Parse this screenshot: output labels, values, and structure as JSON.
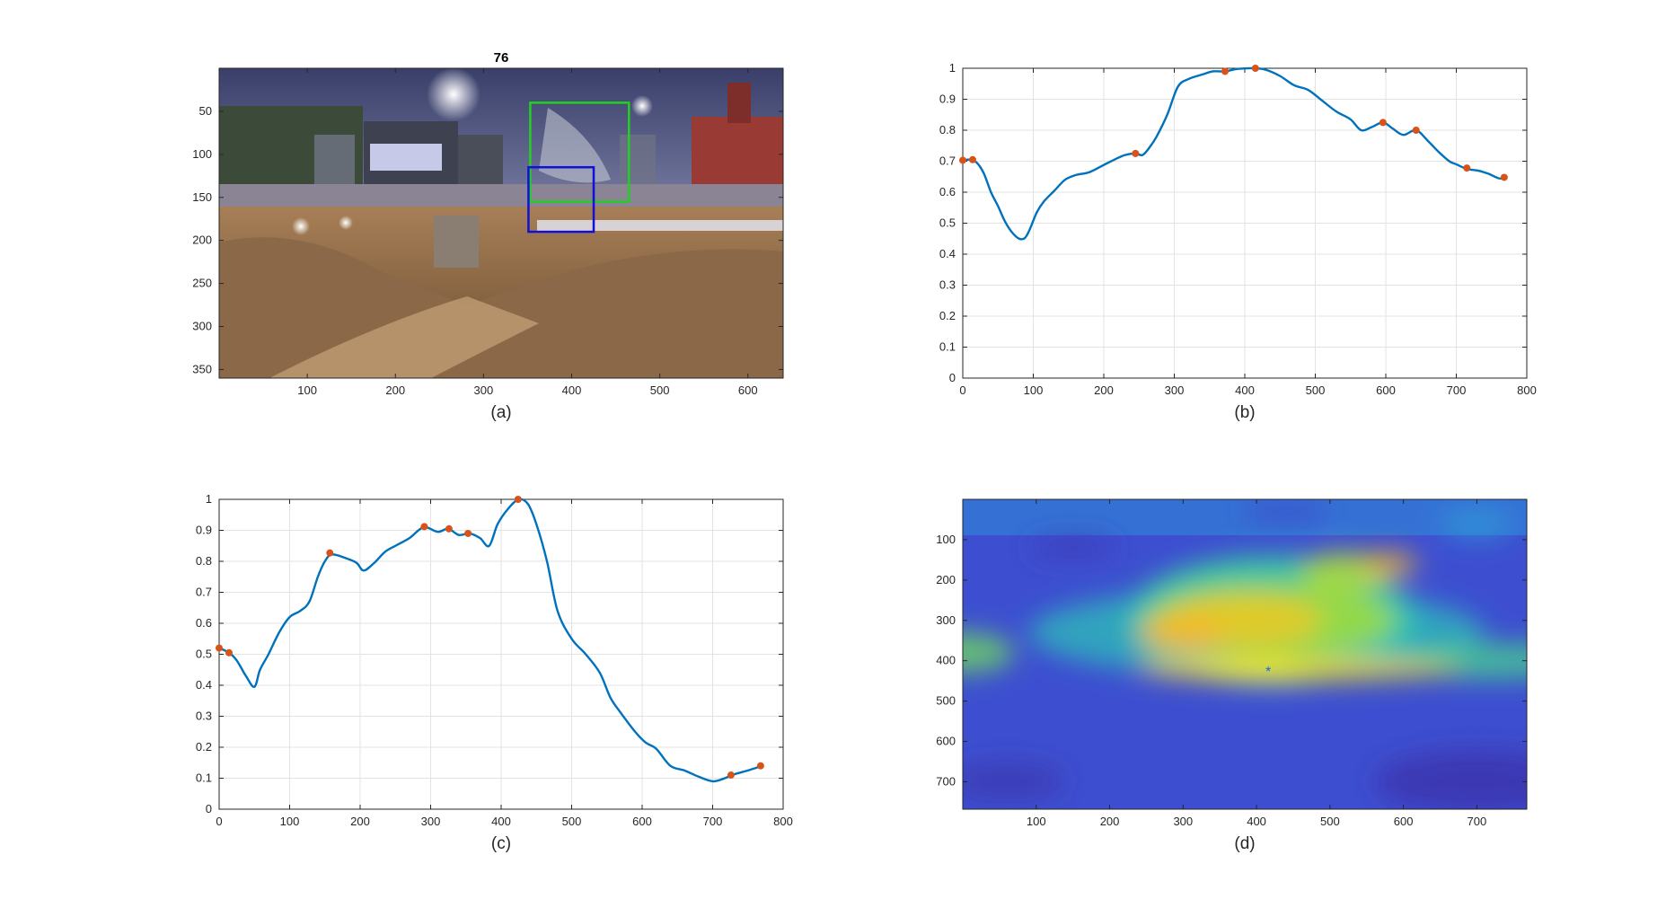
{
  "colors": {
    "line": "#0072bd",
    "peak_marker": "#d95319",
    "green_box": "#22d022",
    "blue_box": "#1010d8",
    "star_marker": "#1b6bd6",
    "grid": "#e3e3e3",
    "axis": "#262626"
  },
  "chart_data": [
    {
      "id": "a",
      "type": "image",
      "caption": "(a)",
      "title": "76",
      "xlim": [
        0,
        640
      ],
      "ylim": [
        0,
        360
      ],
      "y_reversed": true,
      "xticks": [
        100,
        200,
        300,
        400,
        500,
        600
      ],
      "yticks": [
        50,
        100,
        150,
        200,
        250,
        300,
        350
      ],
      "boxes": [
        {
          "color": "green",
          "x": [
            353,
            465
          ],
          "y": [
            40,
            155
          ]
        },
        {
          "color": "blue",
          "x": [
            351,
            425
          ],
          "y": [
            115,
            190
          ]
        }
      ]
    },
    {
      "id": "b",
      "type": "line",
      "caption": "(b)",
      "xlim": [
        0,
        800
      ],
      "ylim": [
        0,
        1
      ],
      "xticks": [
        0,
        100,
        200,
        300,
        400,
        500,
        600,
        700,
        800
      ],
      "yticks": [
        0,
        0.1,
        0.2,
        0.3,
        0.4,
        0.5,
        0.6,
        0.7,
        0.8,
        0.9,
        1
      ],
      "grid": true,
      "series": [
        {
          "x": [
            0,
            10,
            20,
            30,
            40,
            50,
            60,
            70,
            80,
            88,
            95,
            105,
            115,
            130,
            145,
            160,
            180,
            200,
            215,
            230,
            245,
            255,
            265,
            275,
            290,
            305,
            320,
            340,
            355,
            372,
            390,
            415,
            430,
            450,
            470,
            490,
            510,
            530,
            550,
            565,
            580,
            596,
            610,
            625,
            643,
            660,
            675,
            690,
            700,
            715,
            730,
            745,
            760,
            768
          ],
          "y": [
            0.703,
            0.705,
            0.695,
            0.66,
            0.6,
            0.555,
            0.505,
            0.47,
            0.45,
            0.452,
            0.48,
            0.535,
            0.57,
            0.605,
            0.64,
            0.655,
            0.665,
            0.688,
            0.705,
            0.72,
            0.725,
            0.72,
            0.745,
            0.78,
            0.85,
            0.94,
            0.965,
            0.98,
            0.99,
            0.99,
            0.998,
            1.0,
            0.995,
            0.975,
            0.945,
            0.93,
            0.895,
            0.86,
            0.835,
            0.8,
            0.81,
            0.825,
            0.805,
            0.785,
            0.8,
            0.765,
            0.73,
            0.7,
            0.69,
            0.675,
            0.67,
            0.66,
            0.645,
            0.645
          ]
        }
      ],
      "peaks": [
        {
          "x": 0,
          "y": 0.703
        },
        {
          "x": 14,
          "y": 0.705
        },
        {
          "x": 245,
          "y": 0.725
        },
        {
          "x": 372,
          "y": 0.99
        },
        {
          "x": 415,
          "y": 1.0
        },
        {
          "x": 596,
          "y": 0.825
        },
        {
          "x": 643,
          "y": 0.8
        },
        {
          "x": 715,
          "y": 0.678
        },
        {
          "x": 768,
          "y": 0.648
        }
      ]
    },
    {
      "id": "c",
      "type": "line",
      "caption": "(c)",
      "xlim": [
        0,
        800
      ],
      "ylim": [
        0,
        1
      ],
      "xticks": [
        0,
        100,
        200,
        300,
        400,
        500,
        600,
        700,
        800
      ],
      "yticks": [
        0,
        0.1,
        0.2,
        0.3,
        0.4,
        0.5,
        0.6,
        0.7,
        0.8,
        0.9,
        1
      ],
      "grid": true,
      "series": [
        {
          "x": [
            0,
            14,
            25,
            38,
            50,
            58,
            70,
            85,
            100,
            115,
            128,
            140,
            150,
            160,
            180,
            195,
            205,
            220,
            235,
            250,
            270,
            290,
            310,
            325,
            340,
            355,
            370,
            383,
            395,
            410,
            425,
            438,
            450,
            465,
            480,
            500,
            520,
            540,
            555,
            570,
            590,
            605,
            620,
            640,
            660,
            680,
            700,
            715,
            730,
            750,
            768
          ],
          "y": [
            0.52,
            0.505,
            0.48,
            0.43,
            0.395,
            0.45,
            0.5,
            0.57,
            0.62,
            0.64,
            0.67,
            0.75,
            0.8,
            0.822,
            0.81,
            0.795,
            0.77,
            0.795,
            0.83,
            0.85,
            0.875,
            0.91,
            0.895,
            0.905,
            0.885,
            0.89,
            0.875,
            0.85,
            0.92,
            0.97,
            1.0,
            0.985,
            0.92,
            0.8,
            0.64,
            0.55,
            0.5,
            0.44,
            0.36,
            0.31,
            0.25,
            0.215,
            0.195,
            0.14,
            0.125,
            0.105,
            0.09,
            0.098,
            0.112,
            0.125,
            0.138
          ]
        }
      ],
      "peaks": [
        {
          "x": 0,
          "y": 0.52
        },
        {
          "x": 14,
          "y": 0.505
        },
        {
          "x": 157,
          "y": 0.827
        },
        {
          "x": 291,
          "y": 0.912
        },
        {
          "x": 326,
          "y": 0.905
        },
        {
          "x": 353,
          "y": 0.89
        },
        {
          "x": 424,
          "y": 1.0
        },
        {
          "x": 726,
          "y": 0.11
        },
        {
          "x": 768,
          "y": 0.14
        }
      ]
    },
    {
      "id": "d",
      "type": "heatmap",
      "caption": "(d)",
      "xlim": [
        0,
        768
      ],
      "ylim": [
        0,
        768
      ],
      "y_reversed": true,
      "xticks": [
        100,
        200,
        300,
        400,
        500,
        600,
        700
      ],
      "yticks": [
        100,
        200,
        300,
        400,
        500,
        600,
        700
      ],
      "blobs": [
        {
          "x": 420,
          "y": 300,
          "rx": 200,
          "ry": 160,
          "color": "#3ad1a0",
          "opacity": 0.9
        },
        {
          "x": 400,
          "y": 330,
          "rx": 310,
          "ry": 110,
          "color": "#2bbfb8",
          "opacity": 0.75
        },
        {
          "x": 0,
          "y": 380,
          "rx": 70,
          "ry": 50,
          "color": "#6fd85e",
          "opacity": 0.8
        },
        {
          "x": 720,
          "y": 400,
          "rx": 120,
          "ry": 45,
          "color": "#48cf90",
          "opacity": 0.8
        },
        {
          "x": 420,
          "y": 300,
          "rx": 170,
          "ry": 90,
          "color": "#9edb3e",
          "opacity": 0.9
        },
        {
          "x": 520,
          "y": 180,
          "rx": 60,
          "ry": 50,
          "color": "#b9dc34",
          "opacity": 0.8
        },
        {
          "x": 380,
          "y": 300,
          "rx": 110,
          "ry": 65,
          "color": "#e8c928",
          "opacity": 0.9
        },
        {
          "x": 300,
          "y": 330,
          "rx": 60,
          "ry": 45,
          "color": "#f5b82a",
          "opacity": 0.9
        },
        {
          "x": 440,
          "y": 420,
          "rx": 200,
          "ry": 30,
          "color": "#f4d12a",
          "opacity": 0.9
        },
        {
          "x": 420,
          "y": 425,
          "rx": 110,
          "ry": 18,
          "color": "#f8f01c",
          "opacity": 0.95
        },
        {
          "x": 560,
          "y": 420,
          "rx": 120,
          "ry": 22,
          "color": "#d6d52c",
          "opacity": 0.8
        },
        {
          "x": 580,
          "y": 160,
          "rx": 40,
          "ry": 30,
          "color": "#f0b430",
          "opacity": 0.8
        },
        {
          "x": 700,
          "y": 700,
          "rx": 140,
          "ry": 80,
          "color": "#3b2fa8",
          "opacity": 0.7
        },
        {
          "x": 60,
          "y": 700,
          "rx": 80,
          "ry": 50,
          "color": "#3a32a8",
          "opacity": 0.6
        },
        {
          "x": 150,
          "y": 120,
          "rx": 60,
          "ry": 30,
          "color": "#3a3ab8",
          "opacity": 0.7
        },
        {
          "x": 440,
          "y": 30,
          "rx": 60,
          "ry": 25,
          "color": "#3b47c8",
          "opacity": 0.7
        },
        {
          "x": 700,
          "y": 60,
          "rx": 50,
          "ry": 40,
          "color": "#2f9fd8",
          "opacity": 0.6
        }
      ],
      "marker": {
        "x": 416,
        "y": 425,
        "symbol": "*"
      }
    }
  ]
}
